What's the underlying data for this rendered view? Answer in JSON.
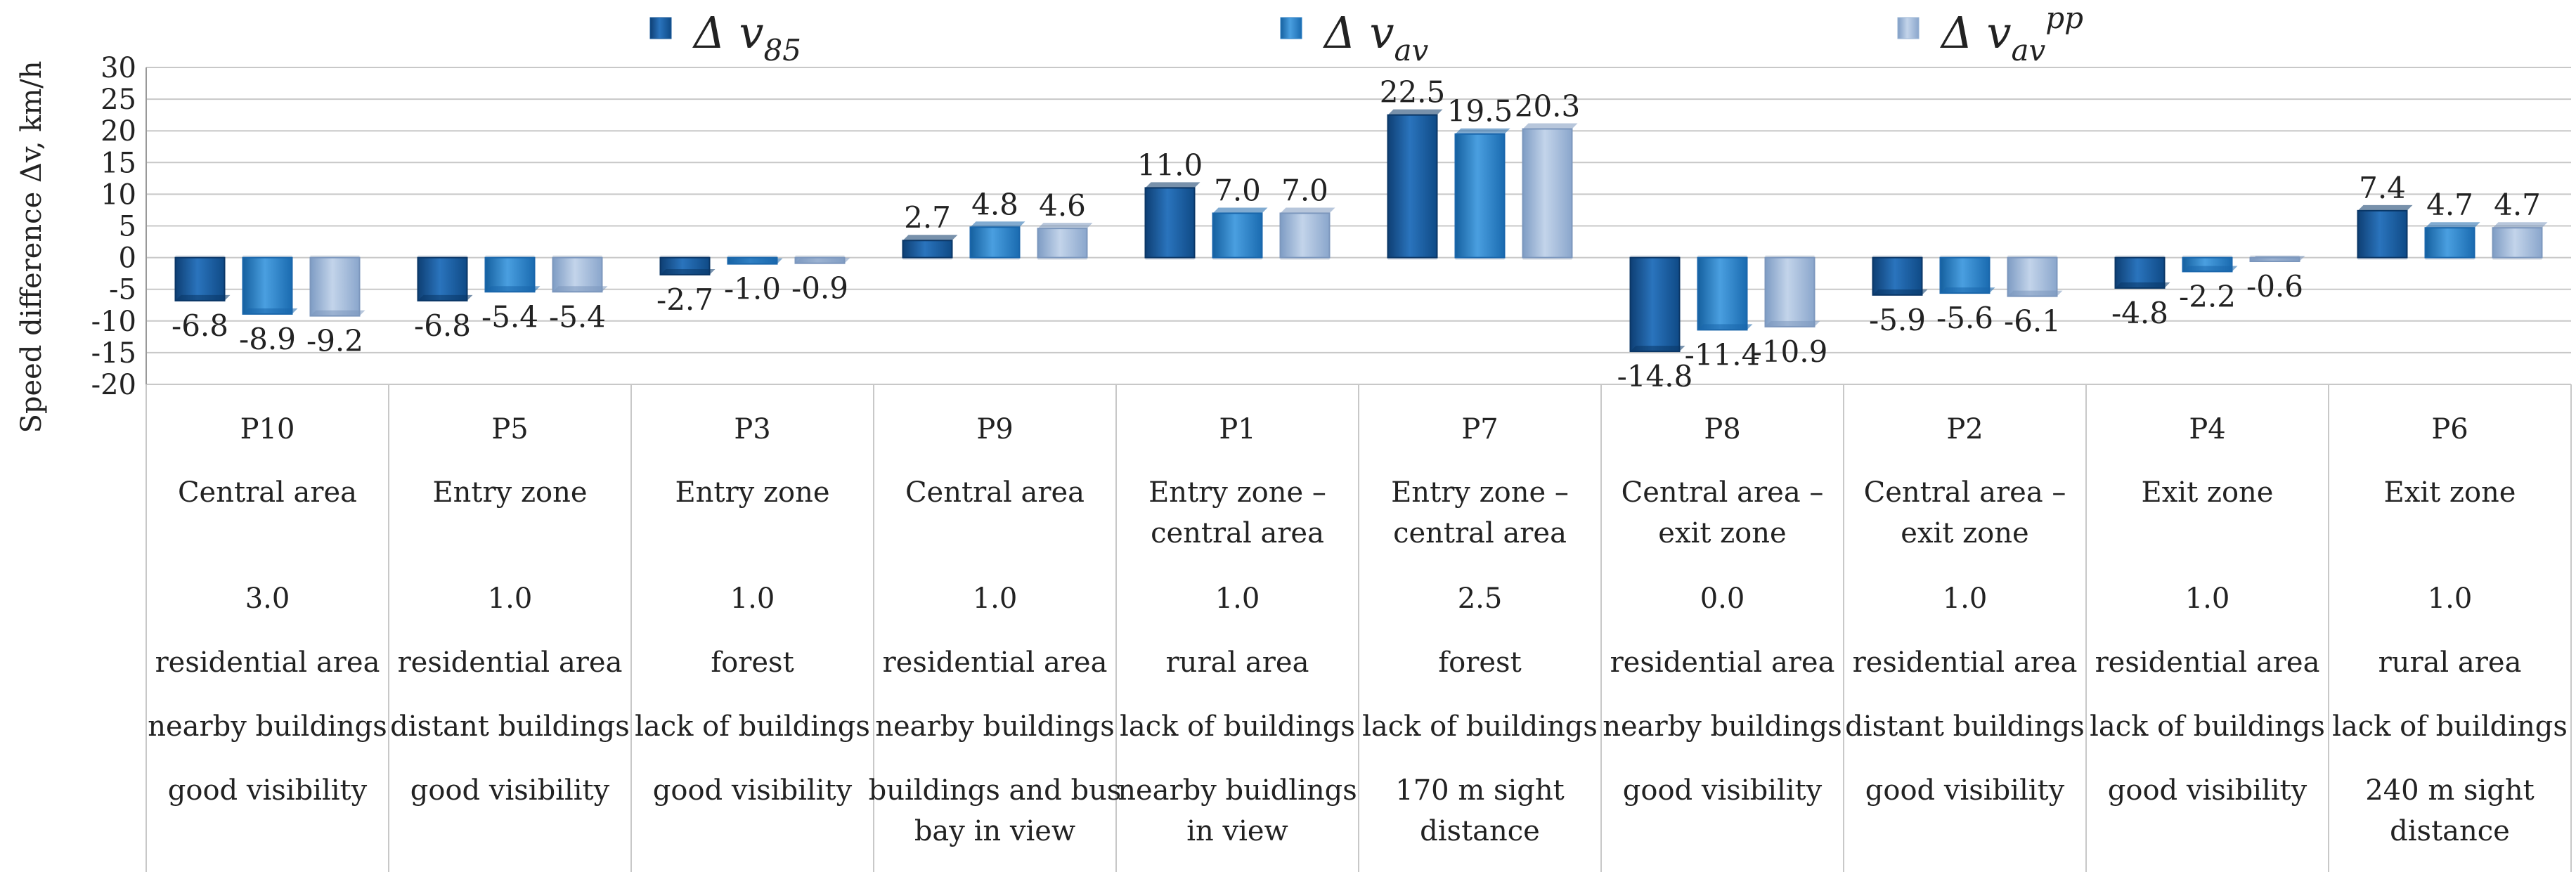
{
  "chart_data": {
    "type": "bar",
    "ylabel": "Speed difference Δv, km/h",
    "ylim": [
      -20,
      30
    ],
    "ytick_step": 5,
    "grid": true,
    "legend_position": "top",
    "series": [
      {
        "name": "Δ v85",
        "symbol": "Δ v",
        "subscript": "85",
        "superscript": "",
        "color": "#1a5a99",
        "values": [
          -6.8,
          -6.8,
          -2.7,
          2.7,
          11.0,
          22.5,
          -14.8,
          -5.9,
          -4.8,
          7.4
        ],
        "labels": [
          "-6.8",
          "-6.8",
          "-2.7",
          "2.7",
          "11.0",
          "22.5",
          "-14.8",
          "-5.9",
          "-4.8",
          "7.4"
        ]
      },
      {
        "name": "Δ vav",
        "symbol": "Δ v",
        "subscript": "av",
        "superscript": "",
        "color": "#2c80c6",
        "values": [
          -8.9,
          -5.4,
          -1.0,
          4.8,
          7.0,
          19.5,
          -11.4,
          -5.6,
          -2.2,
          4.7
        ],
        "labels": [
          "-8.9",
          "-5.4",
          "-1.0",
          "4.8",
          "7.0",
          "19.5",
          "-11.4",
          "-5.6",
          "-2.2",
          "4.7"
        ]
      },
      {
        "name": "Δ vavpp",
        "symbol": "Δ v",
        "subscript": "av",
        "superscript": "pp",
        "color": "#9ab4d4",
        "values": [
          -9.2,
          -5.4,
          -0.9,
          4.6,
          7.0,
          20.3,
          -10.9,
          -6.1,
          -0.6,
          4.7
        ],
        "labels": [
          "-9.2",
          "-5.4",
          "-0.9",
          "4.6",
          "7.0",
          "20.3",
          "-10.9",
          "-6.1",
          "-0.6",
          "4.7"
        ]
      }
    ],
    "categories": [
      {
        "id": "P10",
        "zone": [
          "Central area"
        ],
        "value": "3.0",
        "area": "residential area",
        "buildings": "nearby buildings",
        "visibility": [
          "good visibility"
        ]
      },
      {
        "id": "P5",
        "zone": [
          "Entry zone"
        ],
        "value": "1.0",
        "area": "residential area",
        "buildings": "distant buildings",
        "visibility": [
          "good visibility"
        ]
      },
      {
        "id": "P3",
        "zone": [
          "Entry zone"
        ],
        "value": "1.0",
        "area": "forest",
        "buildings": "lack of buildings",
        "visibility": [
          "good visibility"
        ]
      },
      {
        "id": "P9",
        "zone": [
          "Central area"
        ],
        "value": "1.0",
        "area": "residential area",
        "buildings": "nearby buildings",
        "visibility": [
          "buildings and bus",
          "bay in view"
        ]
      },
      {
        "id": "P1",
        "zone": [
          "Entry zone –",
          "central area"
        ],
        "value": "1.0",
        "area": "rural area",
        "buildings": "lack of buildings",
        "visibility": [
          "nearby buidlings",
          "in view"
        ]
      },
      {
        "id": "P7",
        "zone": [
          "Entry zone –",
          "central area"
        ],
        "value": "2.5",
        "area": "forest",
        "buildings": "lack of buildings",
        "visibility": [
          "170 m sight",
          "distance"
        ]
      },
      {
        "id": "P8",
        "zone": [
          "Central area –",
          "exit zone"
        ],
        "value": "0.0",
        "area": "residential area",
        "buildings": "nearby buildings",
        "visibility": [
          "good visibility"
        ]
      },
      {
        "id": "P2",
        "zone": [
          "Central area –",
          "exit zone"
        ],
        "value": "1.0",
        "area": "residential area",
        "buildings": "distant buildings",
        "visibility": [
          "good visibility"
        ]
      },
      {
        "id": "P4",
        "zone": [
          "Exit zone"
        ],
        "value": "1.0",
        "area": "residential area",
        "buildings": "lack of buildings",
        "visibility": [
          "good visibility"
        ]
      },
      {
        "id": "P6",
        "zone": [
          "Exit zone"
        ],
        "value": "1.0",
        "area": "rural area",
        "buildings": "lack of buildings",
        "visibility": [
          "240 m sight",
          "distance"
        ]
      }
    ]
  }
}
